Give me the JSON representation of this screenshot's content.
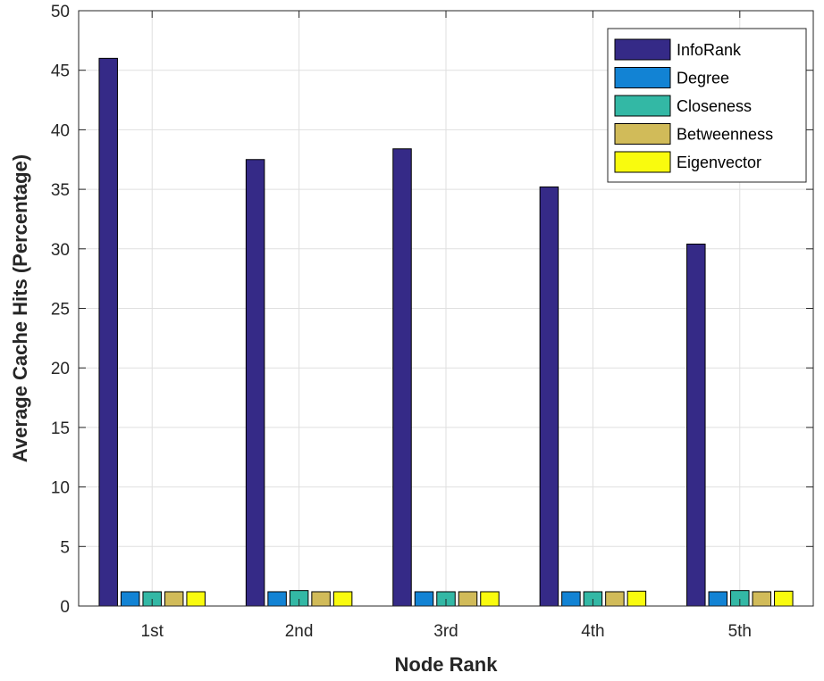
{
  "chart_data": {
    "type": "bar",
    "xlabel": "Node Rank",
    "ylabel": "Average Cache Hits (Percentage)",
    "categories": [
      "1st",
      "2nd",
      "3rd",
      "4th",
      "5th"
    ],
    "ylim": [
      0,
      50
    ],
    "yticks": [
      0,
      5,
      10,
      15,
      20,
      25,
      30,
      35,
      40,
      45,
      50
    ],
    "grid": true,
    "legend_position": "top-right",
    "series": [
      {
        "name": "InfoRank",
        "color": "#352A87",
        "values": [
          46.0,
          37.5,
          38.4,
          35.2,
          30.4
        ]
      },
      {
        "name": "Degree",
        "color": "#1283D4",
        "values": [
          1.2,
          1.2,
          1.2,
          1.2,
          1.2
        ]
      },
      {
        "name": "Closeness",
        "color": "#33B8A5",
        "values": [
          1.2,
          1.3,
          1.2,
          1.2,
          1.3
        ]
      },
      {
        "name": "Betweenness",
        "color": "#D1BB59",
        "values": [
          1.2,
          1.2,
          1.2,
          1.2,
          1.2
        ]
      },
      {
        "name": "Eigenvector",
        "color": "#F9FB0E",
        "values": [
          1.2,
          1.2,
          1.2,
          1.25,
          1.25
        ]
      }
    ]
  }
}
